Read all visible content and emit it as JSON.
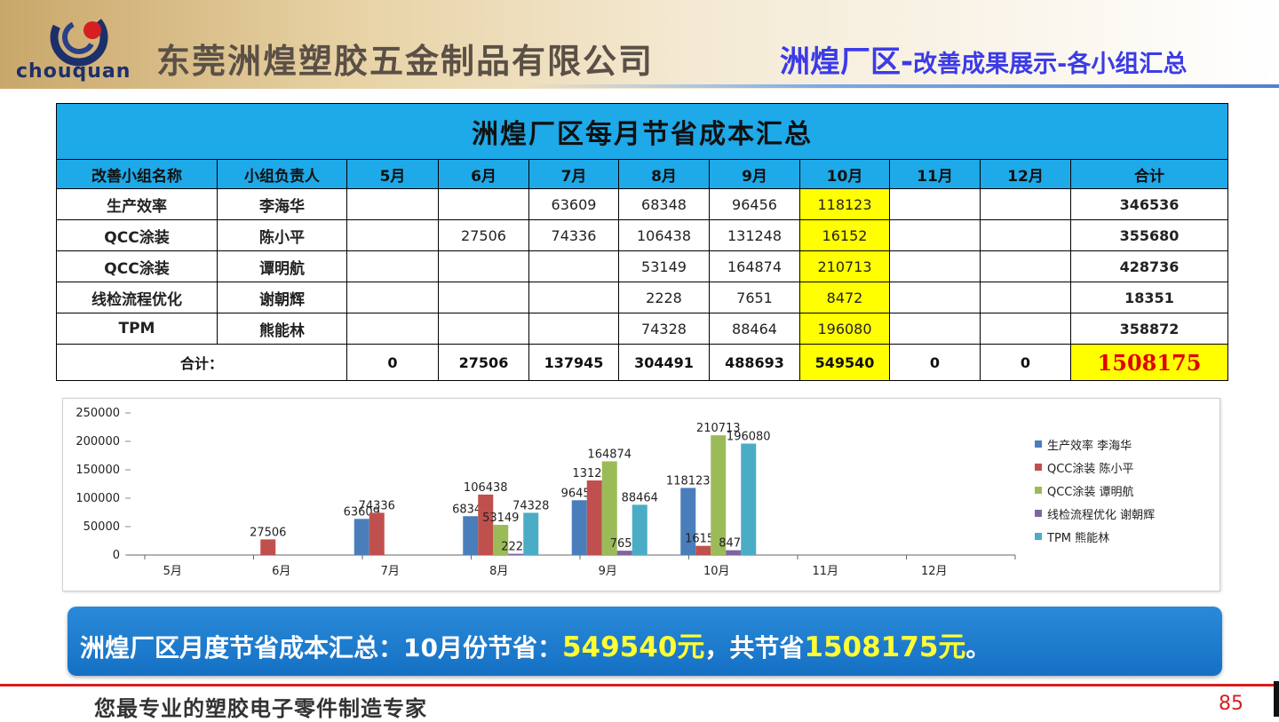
{
  "header": {
    "logo_text": "chouquan",
    "company": "东莞洲煌塑胶五金制品有限公司",
    "slide_title_main": "洲煌厂区-",
    "slide_title_sub": "改善成果展示-各小组汇总"
  },
  "table": {
    "title": "洲煌厂区每月节省成本汇总",
    "headers": [
      "改善小组名称",
      "小组负责人",
      "5月",
      "6月",
      "7月",
      "8月",
      "9月",
      "10月",
      "11月",
      "12月",
      "合计"
    ],
    "rows": [
      {
        "group": "生产效率",
        "leader": "李海华",
        "m5": "",
        "m6": "",
        "m7": "63609",
        "m8": "68348",
        "m9": "96456",
        "m10": "118123",
        "m11": "",
        "m12": "",
        "total": "346536"
      },
      {
        "group": "QCC涂装",
        "leader": "陈小平",
        "m5": "",
        "m6": "27506",
        "m7": "74336",
        "m8": "106438",
        "m9": "131248",
        "m10": "16152",
        "m11": "",
        "m12": "",
        "total": "355680"
      },
      {
        "group": "QCC涂装",
        "leader": "谭明航",
        "m5": "",
        "m6": "",
        "m7": "",
        "m8": "53149",
        "m9": "164874",
        "m10": "210713",
        "m11": "",
        "m12": "",
        "total": "428736"
      },
      {
        "group": "线检流程优化",
        "leader": "谢朝辉",
        "m5": "",
        "m6": "",
        "m7": "",
        "m8": "2228",
        "m9": "7651",
        "m10": "8472",
        "m11": "",
        "m12": "",
        "total": "18351"
      },
      {
        "group": "TPM",
        "leader": "熊能林",
        "m5": "",
        "m6": "",
        "m7": "",
        "m8": "74328",
        "m9": "88464",
        "m10": "196080",
        "m11": "",
        "m12": "",
        "total": "358872"
      }
    ],
    "totals": {
      "label": "合计：",
      "m5": "0",
      "m6": "27506",
      "m7": "137945",
      "m8": "304491",
      "m9": "488693",
      "m10": "549540",
      "m11": "0",
      "m12": "0",
      "total": "1508175"
    }
  },
  "chart_data": {
    "type": "bar",
    "categories": [
      "5月",
      "6月",
      "7月",
      "8月",
      "9月",
      "10月",
      "11月",
      "12月"
    ],
    "series": [
      {
        "name": "生产效率 李海华",
        "color": "#4a7ebb",
        "values": [
          null,
          null,
          63609,
          68348,
          96456,
          118123,
          null,
          null
        ]
      },
      {
        "name": "QCC涂装 陈小平",
        "color": "#c0504d",
        "values": [
          null,
          27506,
          74336,
          106438,
          131248,
          16152,
          null,
          null
        ]
      },
      {
        "name": "QCC涂装 谭明航",
        "color": "#9bbb59",
        "values": [
          null,
          null,
          null,
          53149,
          164874,
          210713,
          null,
          null
        ]
      },
      {
        "name": "线检流程优化 谢朝辉",
        "color": "#8064a2",
        "values": [
          null,
          null,
          null,
          2228,
          7651,
          8472,
          null,
          null
        ]
      },
      {
        "name": "TPM 熊能林",
        "color": "#4bacc6",
        "values": [
          null,
          null,
          null,
          74328,
          88464,
          196080,
          null,
          null
        ]
      }
    ],
    "yticks": [
      "0",
      "50000",
      "100000",
      "150000",
      "200000",
      "250000"
    ],
    "ylim": [
      0,
      250000
    ],
    "legend_position": "right"
  },
  "banner": {
    "prefix": "洲煌厂区月度节省成本汇总：10月份节省：",
    "month_value": "549540元",
    "middle": "，共节省",
    "total_value": "1508175元",
    "suffix": "。"
  },
  "footer": {
    "slogan": "您最专业的塑胶电子零件制造专家",
    "page": "85"
  }
}
